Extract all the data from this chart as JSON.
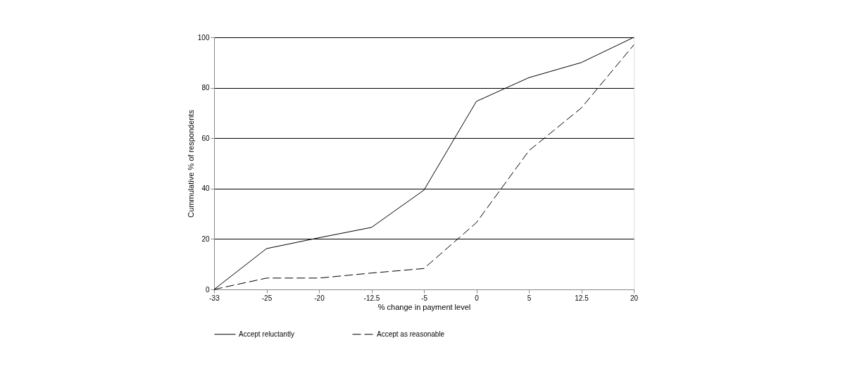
{
  "chart_data": {
    "type": "line",
    "xlabel": "% change in payment level",
    "ylabel": "Cummulative % of respondents",
    "categories": [
      "-33",
      "-25",
      "-20",
      "-12.5",
      "-5",
      "0",
      "5",
      "12.5",
      "20"
    ],
    "series": [
      {
        "name": "Accept reluctantly",
        "color": "#000000",
        "line_style": "solid",
        "values": [
          0,
          16.2,
          20.5,
          24.6,
          39.4,
          74.6,
          84,
          90,
          100
        ]
      },
      {
        "name": "Accept as reasonable",
        "color": "#000000",
        "line_style": "dashed",
        "values": [
          0,
          4.5,
          4.5,
          6.5,
          8.3,
          26.5,
          55,
          72,
          97
        ]
      }
    ],
    "ylim": [
      0,
      100
    ],
    "yticks": [
      0,
      20,
      40,
      60,
      80,
      100
    ],
    "grid": "y",
    "legend": "bottom",
    "marker": "none"
  }
}
